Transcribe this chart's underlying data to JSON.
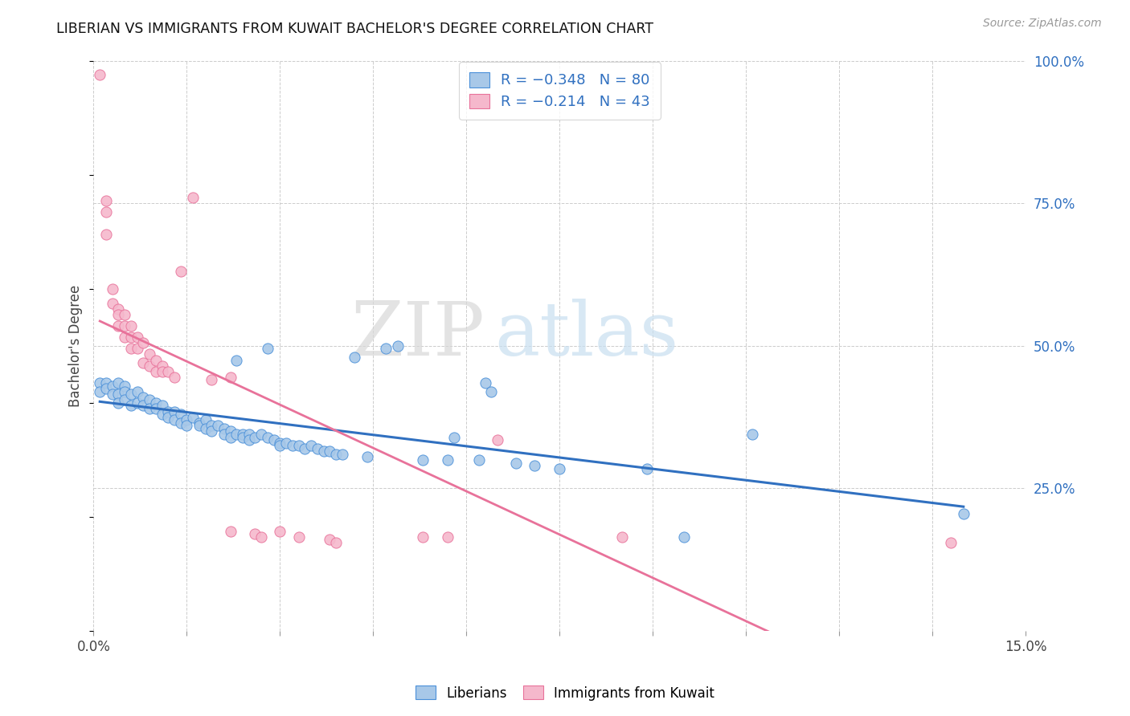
{
  "title": "LIBERIAN VS IMMIGRANTS FROM KUWAIT BACHELOR'S DEGREE CORRELATION CHART",
  "source": "Source: ZipAtlas.com",
  "ylabel": "Bachelor's Degree",
  "xlim": [
    0.0,
    0.15
  ],
  "ylim": [
    0.0,
    1.0
  ],
  "xtick_positions": [
    0.0,
    0.015,
    0.03,
    0.045,
    0.06,
    0.075,
    0.09,
    0.105,
    0.12,
    0.135,
    0.15
  ],
  "xtick_labels": [
    "0.0%",
    "",
    "",
    "",
    "",
    "",
    "",
    "",
    "",
    "",
    "15.0%"
  ],
  "ytick_positions": [
    0.0,
    0.25,
    0.5,
    0.75,
    1.0
  ],
  "ytick_labels": [
    "",
    "25.0%",
    "50.0%",
    "75.0%",
    "100.0%"
  ],
  "watermark_zip": "ZIP",
  "watermark_atlas": "atlas",
  "liberian_color": "#a8c8e8",
  "kuwait_color": "#f5b8cc",
  "liberian_edge_color": "#4a90d9",
  "kuwait_edge_color": "#e8729a",
  "liberian_line_color": "#3070c0",
  "kuwait_line_color": "#e8729a",
  "liberian_scatter": [
    [
      0.001,
      0.435
    ],
    [
      0.001,
      0.42
    ],
    [
      0.002,
      0.435
    ],
    [
      0.002,
      0.425
    ],
    [
      0.003,
      0.43
    ],
    [
      0.003,
      0.415
    ],
    [
      0.004,
      0.435
    ],
    [
      0.004,
      0.415
    ],
    [
      0.004,
      0.4
    ],
    [
      0.005,
      0.43
    ],
    [
      0.005,
      0.42
    ],
    [
      0.005,
      0.405
    ],
    [
      0.006,
      0.415
    ],
    [
      0.006,
      0.395
    ],
    [
      0.007,
      0.42
    ],
    [
      0.007,
      0.4
    ],
    [
      0.008,
      0.41
    ],
    [
      0.008,
      0.395
    ],
    [
      0.009,
      0.405
    ],
    [
      0.009,
      0.39
    ],
    [
      0.01,
      0.4
    ],
    [
      0.01,
      0.39
    ],
    [
      0.011,
      0.395
    ],
    [
      0.011,
      0.38
    ],
    [
      0.012,
      0.385
    ],
    [
      0.012,
      0.375
    ],
    [
      0.013,
      0.385
    ],
    [
      0.013,
      0.37
    ],
    [
      0.014,
      0.38
    ],
    [
      0.014,
      0.365
    ],
    [
      0.015,
      0.37
    ],
    [
      0.015,
      0.36
    ],
    [
      0.016,
      0.375
    ],
    [
      0.017,
      0.365
    ],
    [
      0.017,
      0.36
    ],
    [
      0.018,
      0.37
    ],
    [
      0.018,
      0.355
    ],
    [
      0.019,
      0.36
    ],
    [
      0.019,
      0.35
    ],
    [
      0.02,
      0.36
    ],
    [
      0.021,
      0.355
    ],
    [
      0.021,
      0.345
    ],
    [
      0.022,
      0.35
    ],
    [
      0.022,
      0.34
    ],
    [
      0.023,
      0.475
    ],
    [
      0.023,
      0.345
    ],
    [
      0.024,
      0.345
    ],
    [
      0.024,
      0.34
    ],
    [
      0.025,
      0.345
    ],
    [
      0.025,
      0.335
    ],
    [
      0.026,
      0.34
    ],
    [
      0.027,
      0.345
    ],
    [
      0.028,
      0.495
    ],
    [
      0.028,
      0.34
    ],
    [
      0.029,
      0.335
    ],
    [
      0.03,
      0.33
    ],
    [
      0.03,
      0.325
    ],
    [
      0.031,
      0.33
    ],
    [
      0.032,
      0.325
    ],
    [
      0.033,
      0.325
    ],
    [
      0.034,
      0.32
    ],
    [
      0.035,
      0.325
    ],
    [
      0.036,
      0.32
    ],
    [
      0.037,
      0.315
    ],
    [
      0.038,
      0.315
    ],
    [
      0.039,
      0.31
    ],
    [
      0.04,
      0.31
    ],
    [
      0.042,
      0.48
    ],
    [
      0.044,
      0.305
    ],
    [
      0.047,
      0.495
    ],
    [
      0.049,
      0.5
    ],
    [
      0.053,
      0.3
    ],
    [
      0.057,
      0.3
    ],
    [
      0.058,
      0.34
    ],
    [
      0.062,
      0.3
    ],
    [
      0.063,
      0.435
    ],
    [
      0.064,
      0.42
    ],
    [
      0.068,
      0.295
    ],
    [
      0.071,
      0.29
    ],
    [
      0.075,
      0.285
    ],
    [
      0.089,
      0.285
    ],
    [
      0.095,
      0.165
    ],
    [
      0.106,
      0.345
    ],
    [
      0.14,
      0.205
    ]
  ],
  "kuwait_scatter": [
    [
      0.001,
      0.975
    ],
    [
      0.002,
      0.755
    ],
    [
      0.002,
      0.735
    ],
    [
      0.002,
      0.695
    ],
    [
      0.003,
      0.6
    ],
    [
      0.003,
      0.575
    ],
    [
      0.004,
      0.565
    ],
    [
      0.004,
      0.555
    ],
    [
      0.004,
      0.535
    ],
    [
      0.005,
      0.555
    ],
    [
      0.005,
      0.535
    ],
    [
      0.005,
      0.515
    ],
    [
      0.006,
      0.535
    ],
    [
      0.006,
      0.515
    ],
    [
      0.006,
      0.495
    ],
    [
      0.007,
      0.515
    ],
    [
      0.007,
      0.495
    ],
    [
      0.008,
      0.505
    ],
    [
      0.008,
      0.47
    ],
    [
      0.009,
      0.485
    ],
    [
      0.009,
      0.465
    ],
    [
      0.01,
      0.475
    ],
    [
      0.01,
      0.455
    ],
    [
      0.011,
      0.465
    ],
    [
      0.011,
      0.455
    ],
    [
      0.012,
      0.455
    ],
    [
      0.013,
      0.445
    ],
    [
      0.014,
      0.63
    ],
    [
      0.016,
      0.76
    ],
    [
      0.019,
      0.44
    ],
    [
      0.022,
      0.445
    ],
    [
      0.022,
      0.175
    ],
    [
      0.026,
      0.17
    ],
    [
      0.027,
      0.165
    ],
    [
      0.03,
      0.175
    ],
    [
      0.033,
      0.165
    ],
    [
      0.038,
      0.16
    ],
    [
      0.039,
      0.155
    ],
    [
      0.053,
      0.165
    ],
    [
      0.057,
      0.165
    ],
    [
      0.065,
      0.335
    ],
    [
      0.085,
      0.165
    ],
    [
      0.138,
      0.155
    ]
  ],
  "legend_text_color": "#3070c0",
  "right_axis_color": "#3070c0"
}
